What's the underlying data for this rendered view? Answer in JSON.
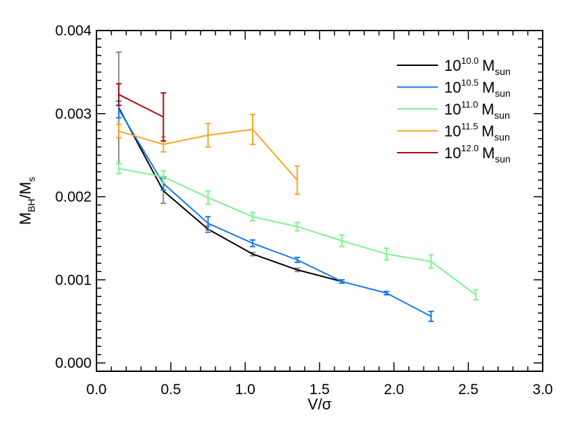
{
  "chart_data": {
    "type": "line",
    "title": "",
    "xlabel": "V/σ",
    "ylabel": {
      "main": "M",
      "sub1": "BH",
      "sep": "/M",
      "sub2": "s"
    },
    "xlim": [
      0.0,
      3.0
    ],
    "ylim": [
      -0.0001,
      0.004
    ],
    "xticks": [
      0.0,
      0.5,
      1.0,
      1.5,
      2.0,
      2.5,
      3.0
    ],
    "xtick_labels": [
      "0.0",
      "0.5",
      "1.0",
      "1.5",
      "2.0",
      "2.5",
      "3.0"
    ],
    "yticks": [
      0.0,
      0.001,
      0.002,
      0.003,
      0.004
    ],
    "ytick_labels": [
      "0.000",
      "0.001",
      "0.002",
      "0.003",
      "0.004"
    ],
    "grid": false,
    "legend_position": "top-right",
    "series": [
      {
        "name": "10^10.0 M_sun",
        "legend": {
          "base": "10",
          "exp": "10.0",
          "m": "M",
          "sub": "sun"
        },
        "color": "#000000",
        "errcolor": "#888888",
        "x": [
          0.15,
          0.45,
          0.75,
          1.05,
          1.35,
          1.65
        ],
        "y": [
          0.00307,
          0.00207,
          0.00161,
          0.00131,
          0.00112,
          0.00098
        ],
        "err": [
          0.00067,
          0.00015,
          4e-05,
          2e-05,
          2e-05,
          2e-05
        ]
      },
      {
        "name": "10^10.5 M_sun",
        "legend": {
          "base": "10",
          "exp": "10.5",
          "m": "M",
          "sub": "sun"
        },
        "color": "#1a7ae8",
        "errcolor": "#1a7ae8",
        "x": [
          0.15,
          0.45,
          0.75,
          1.05,
          1.35,
          1.65,
          1.95,
          2.25
        ],
        "y": [
          0.00305,
          0.00216,
          0.00168,
          0.00144,
          0.00124,
          0.00098,
          0.00084,
          0.00056
        ],
        "err": [
          0.0001,
          8e-05,
          8e-05,
          4e-05,
          3e-05,
          2e-05,
          2e-05,
          6e-05
        ]
      },
      {
        "name": "10^11.0 M_sun",
        "legend": {
          "base": "10",
          "exp": "11.0",
          "m": "M",
          "sub": "sun"
        },
        "color": "#7ff28f",
        "errcolor": "#7ff28f",
        "x": [
          0.15,
          0.45,
          0.75,
          1.05,
          1.35,
          1.65,
          1.95,
          2.25,
          2.55
        ],
        "y": [
          0.00234,
          0.00224,
          0.00199,
          0.00176,
          0.00164,
          0.00147,
          0.00131,
          0.00122,
          0.00082
        ],
        "err": [
          6e-05,
          7e-05,
          8e-05,
          5e-05,
          5e-05,
          7e-05,
          7e-05,
          8e-05,
          6e-05
        ]
      },
      {
        "name": "10^11.5 M_sun",
        "legend": {
          "base": "10",
          "exp": "11.5",
          "m": "M",
          "sub": "sun"
        },
        "color": "#f5a623",
        "errcolor": "#f5a623",
        "x": [
          0.15,
          0.45,
          0.75,
          1.05,
          1.35
        ],
        "y": [
          0.00279,
          0.00263,
          0.00274,
          0.00281,
          0.0022
        ],
        "err": [
          8e-05,
          9e-05,
          0.00014,
          0.00018,
          0.00017
        ]
      },
      {
        "name": "10^12.0 M_sun",
        "legend": {
          "base": "10",
          "exp": "12.0",
          "m": "M",
          "sub": "sun"
        },
        "color": "#a01010",
        "errcolor": "#a01010",
        "x": [
          0.15,
          0.45
        ],
        "y": [
          0.00323,
          0.00296
        ],
        "err": [
          0.00013,
          0.00029
        ]
      }
    ]
  }
}
